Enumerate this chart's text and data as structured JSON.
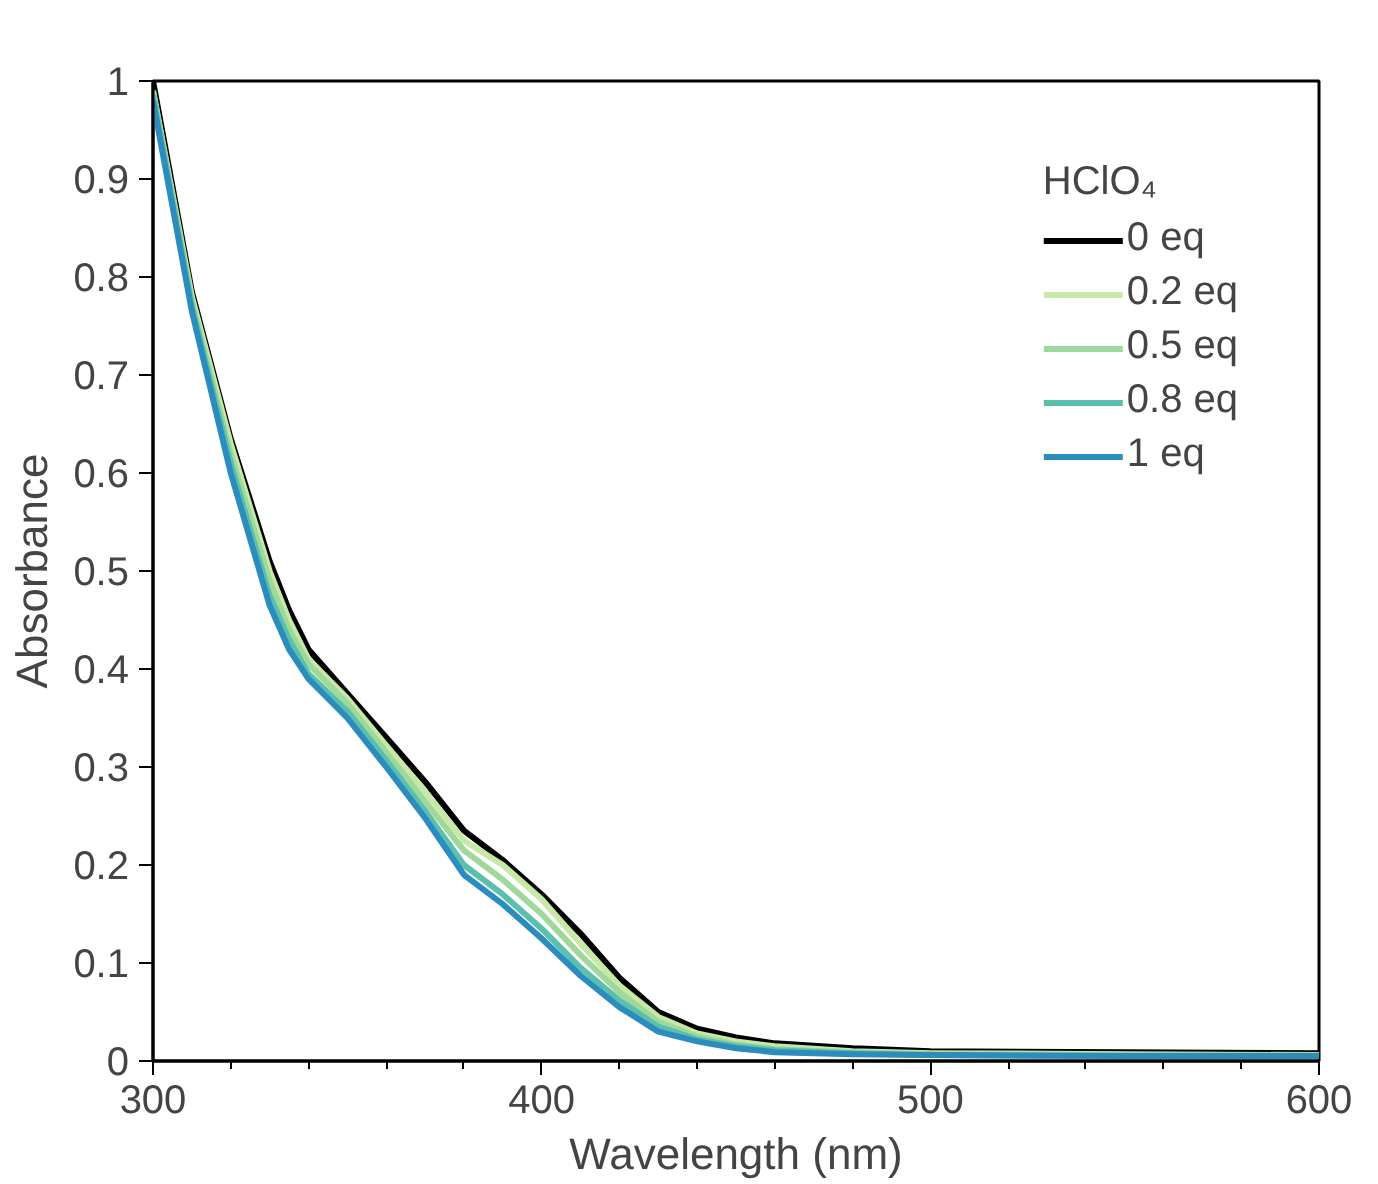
{
  "chart_data": {
    "type": "line",
    "xlabel": "Wavelength (nm)",
    "ylabel": "Absorbance",
    "legend_title": "HClO₄",
    "legend": "top right",
    "grid": false,
    "x": [
      300,
      310,
      320,
      330,
      335,
      340,
      350,
      360,
      370,
      380,
      390,
      400,
      410,
      420,
      430,
      440,
      450,
      460,
      480,
      500,
      550,
      600
    ],
    "xlim": [
      300,
      600
    ],
    "ylim": [
      0,
      1
    ],
    "xticks": [
      300,
      {
        "value": 320,
        "label": null
      },
      {
        "value": 340,
        "label": null
      },
      {
        "value": 360,
        "label": null
      },
      {
        "value": 380,
        "label": null
      },
      400,
      {
        "value": 420,
        "label": null
      },
      {
        "value": 440,
        "label": null
      },
      {
        "value": 460,
        "label": null
      },
      {
        "value": 480,
        "label": null
      },
      500,
      {
        "value": 520,
        "label": null
      },
      {
        "value": 540,
        "label": null
      },
      {
        "value": 560,
        "label": null
      },
      {
        "value": 580,
        "label": null
      },
      600
    ],
    "yticks": [
      0,
      0.1,
      0.2,
      0.3,
      0.4,
      0.5,
      0.6,
      0.7,
      0.8,
      0.9,
      1
    ],
    "series": [
      {
        "name": "0 eq",
        "color": "#000000",
        "values": [
          1.0,
          0.785,
          0.635,
          0.51,
          0.46,
          0.42,
          0.375,
          0.33,
          0.285,
          0.235,
          0.205,
          0.17,
          0.13,
          0.085,
          0.05,
          0.033,
          0.024,
          0.018,
          0.013,
          0.01,
          0.009,
          0.008
        ]
      },
      {
        "name": "0.2 eq",
        "color": "#c7e9a7",
        "values": [
          0.99,
          0.78,
          0.63,
          0.5,
          0.45,
          0.41,
          0.37,
          0.322,
          0.275,
          0.225,
          0.2,
          0.165,
          0.12,
          0.077,
          0.045,
          0.028,
          0.02,
          0.015,
          0.01,
          0.008,
          0.007,
          0.006
        ]
      },
      {
        "name": "0.5 eq",
        "color": "#9fd89a",
        "values": [
          0.99,
          0.775,
          0.62,
          0.49,
          0.44,
          0.405,
          0.365,
          0.315,
          0.265,
          0.215,
          0.185,
          0.15,
          0.108,
          0.07,
          0.04,
          0.025,
          0.017,
          0.012,
          0.009,
          0.007,
          0.006,
          0.006
        ]
      },
      {
        "name": "0.8 eq",
        "color": "#5bbfae",
        "values": [
          0.985,
          0.77,
          0.61,
          0.475,
          0.43,
          0.395,
          0.357,
          0.307,
          0.255,
          0.2,
          0.17,
          0.135,
          0.095,
          0.062,
          0.035,
          0.022,
          0.015,
          0.011,
          0.008,
          0.006,
          0.005,
          0.005
        ]
      },
      {
        "name": "1 eq",
        "color": "#2b8cbe",
        "values": [
          0.98,
          0.765,
          0.6,
          0.465,
          0.42,
          0.39,
          0.35,
          0.3,
          0.248,
          0.19,
          0.16,
          0.125,
          0.087,
          0.055,
          0.03,
          0.02,
          0.013,
          0.009,
          0.007,
          0.006,
          0.005,
          0.005
        ]
      }
    ]
  }
}
